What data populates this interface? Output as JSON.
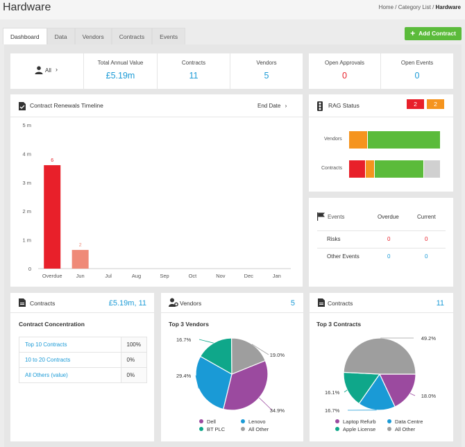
{
  "header": {
    "title": "Hardware",
    "breadcrumb": {
      "home": "Home",
      "category": "Category List",
      "current": "Hardware"
    }
  },
  "tabs": [
    "Dashboard",
    "Data",
    "Vendors",
    "Contracts",
    "Events"
  ],
  "add_contract_label": "Add Contract",
  "summary": {
    "filter_label": "All",
    "total_annual_value_label": "Total Annual Value",
    "total_annual_value": "£5.19m",
    "contracts_label": "Contracts",
    "contracts": "11",
    "vendors_label": "Vendors",
    "vendors": "5",
    "open_approvals_label": "Open Approvals",
    "open_approvals": "0",
    "open_events_label": "Open Events",
    "open_events": "0"
  },
  "renewals": {
    "title": "Contract Renewals Timeline",
    "sort_label": "End Date"
  },
  "chart_data": {
    "type": "bar",
    "categories": [
      "Overdue",
      "Jun",
      "Jul",
      "Aug",
      "Sep",
      "Oct",
      "Nov",
      "Dec",
      "Jan"
    ],
    "values": [
      3.6,
      0.65,
      0,
      0,
      0,
      0,
      0,
      0,
      0
    ],
    "data_labels": [
      "6",
      "2",
      "",
      "",
      "",
      "",
      "",
      "",
      ""
    ],
    "bar_colors": [
      "#e8202a",
      "#ef8a78",
      "#e8202a",
      "#e8202a",
      "#e8202a",
      "#e8202a",
      "#e8202a",
      "#e8202a",
      "#e8202a"
    ],
    "y_ticks": [
      "0",
      "1 m",
      "2 m",
      "3 m",
      "4 m",
      "5 m"
    ],
    "ylim": [
      0,
      5
    ]
  },
  "rag": {
    "title": "RAG Status",
    "red_count": "2",
    "amber_count": "2",
    "rows": [
      {
        "label": "Vendors",
        "segments": [
          {
            "color": "#f5941e",
            "value": 1
          },
          {
            "color": "#5bbb3b",
            "value": 4
          }
        ]
      },
      {
        "label": "Contracts",
        "segments": [
          {
            "color": "#e8202a",
            "value": 2
          },
          {
            "color": "#f5941e",
            "value": 1
          },
          {
            "color": "#5bbb3b",
            "value": 6
          },
          {
            "color": "#d0d0d0",
            "value": 2
          }
        ]
      }
    ]
  },
  "events": {
    "title": "Events",
    "overdue_label": "Overdue",
    "current_label": "Current",
    "rows": [
      {
        "label": "Risks",
        "overdue": "0",
        "current": "0"
      },
      {
        "label": "Other Events",
        "overdue": "0",
        "current": "0"
      }
    ]
  },
  "contracts_panel": {
    "title": "Contracts",
    "value": "£5.19m, 11",
    "subtitle": "Contract Concentration",
    "rows": [
      {
        "label": "Top 10 Contracts",
        "value": "100%"
      },
      {
        "label": "10 to 20 Contracts",
        "value": "0%"
      },
      {
        "label": "All Others (value)",
        "value": "0%"
      }
    ]
  },
  "vendors_pie": {
    "title": "Vendors",
    "count": "5",
    "subtitle": "Top 3 Vendors",
    "slices": [
      {
        "name": "Dell",
        "value": 34.9,
        "label": "34.9%",
        "color": "#9b4a9f"
      },
      {
        "name": "Lenovo",
        "value": 29.4,
        "label": "29.4%",
        "color": "#1a9ad6"
      },
      {
        "name": "BT PLC",
        "value": 16.7,
        "label": "16.7%",
        "color": "#0fa78a"
      },
      {
        "name": "All Other",
        "value": 19.0,
        "label": "19.0%",
        "color": "#9e9e9e"
      }
    ]
  },
  "contracts_pie": {
    "title": "Contracts",
    "count": "11",
    "subtitle": "Top 3 Contracts",
    "slices": [
      {
        "name": "Laptop Refurb",
        "value": 18.0,
        "label": "18.0%",
        "color": "#9b4a9f"
      },
      {
        "name": "Data Centre",
        "value": 16.7,
        "label": "16.7%",
        "color": "#1a9ad6"
      },
      {
        "name": "Apple License",
        "value": 16.1,
        "label": "16.1%",
        "color": "#0fa78a"
      },
      {
        "name": "All Other",
        "value": 49.2,
        "label": "49.2%",
        "color": "#9e9e9e"
      }
    ]
  }
}
